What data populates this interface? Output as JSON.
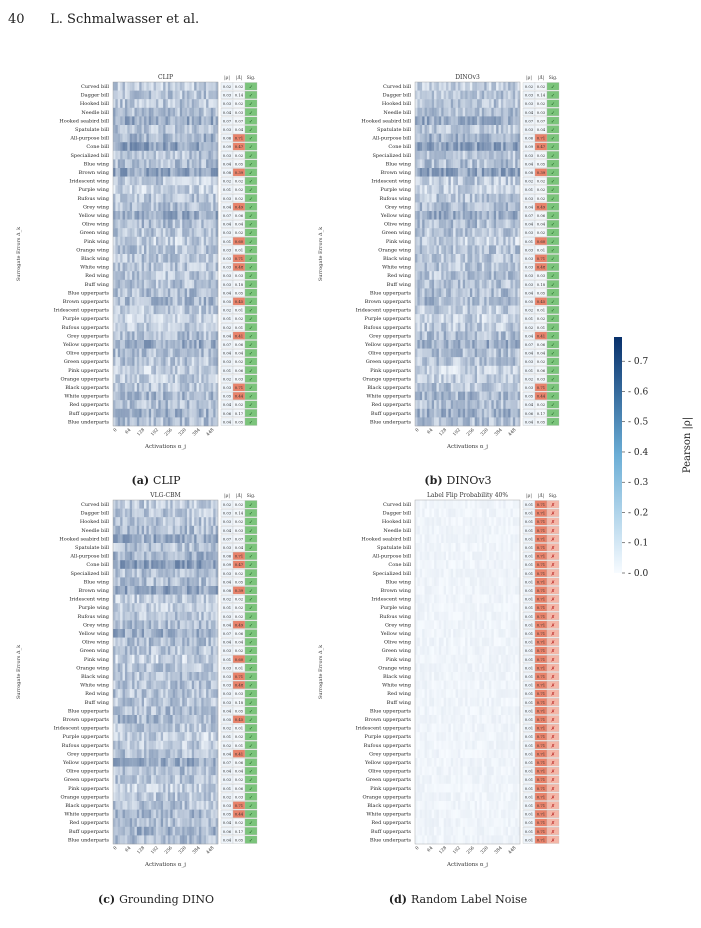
{
  "page": {
    "number": "40",
    "authors": "L. Schmalwasser et al."
  },
  "concepts": [
    "Curved bill",
    "Dagger bill",
    "Hooked bill",
    "Needle bill",
    "Hooked seabird bill",
    "Spatulate bill",
    "All-purpose bill",
    "Cone bill",
    "Specialized bill",
    "Blue wing",
    "Brown wing",
    "Iridescent wing",
    "Purple wing",
    "Rufous wing",
    "Grey wing",
    "Yellow wing",
    "Olive wing",
    "Green wing",
    "Pink wing",
    "Orange wing",
    "Black wing",
    "White wing",
    "Red wing",
    "Buff wing",
    "Blue upperparts",
    "Brown upperparts",
    "Iridescent upperparts",
    "Purple upperparts",
    "Rufous upperparts",
    "Grey upperparts",
    "Yellow upperparts",
    "Olive upperparts",
    "Green upperparts",
    "Pink upperparts",
    "Orange upperparts",
    "Black upperparts",
    "White upperparts",
    "Red upperparts",
    "Buff upperparts",
    "Blue underparts"
  ],
  "common": {
    "ylabel": "Surrogate Errors Δ_k",
    "xlabel": "Activations α_j",
    "xticks": [
      "0",
      "64",
      "128",
      "192",
      "256",
      "320",
      "384",
      "448"
    ],
    "col_headers": [
      "|ρ|",
      "|Δ̂|",
      "Sig."
    ],
    "check": "✓",
    "cross": "✗"
  },
  "panels": [
    {
      "id": "a",
      "label": "(a)",
      "caption": "CLIP",
      "title": "CLIP",
      "intensity": 1.0,
      "rho": [
        0.02,
        0.03,
        0.03,
        0.04,
        0.07,
        0.03,
        0.06,
        0.09,
        0.03,
        0.04,
        0.08,
        0.02,
        0.01,
        0.03,
        0.04,
        0.07,
        0.04,
        0.03,
        0.01,
        0.03,
        0.03,
        0.03,
        0.03,
        0.03,
        0.04,
        0.05,
        0.02,
        0.01,
        0.02,
        0.04,
        0.07,
        0.04,
        0.03,
        0.01,
        0.02,
        0.03,
        0.05,
        0.04,
        0.06,
        0.04
      ],
      "delta": [
        0.02,
        0.14,
        0.02,
        0.03,
        0.07,
        0.04,
        0.71,
        0.47,
        0.02,
        0.05,
        0.39,
        0.02,
        0.02,
        0.02,
        0.49,
        0.06,
        0.04,
        0.02,
        0.6,
        0.01,
        0.71,
        0.48,
        0.03,
        0.18,
        0.05,
        0.45,
        0.01,
        0.02,
        0.01,
        0.41,
        0.06,
        0.04,
        0.02,
        0.06,
        0.03,
        0.71,
        0.44,
        0.02,
        0.17,
        0.05
      ],
      "sig": [
        1,
        1,
        1,
        1,
        1,
        1,
        1,
        1,
        1,
        1,
        1,
        1,
        1,
        1,
        1,
        1,
        1,
        1,
        1,
        1,
        1,
        1,
        1,
        1,
        1,
        1,
        1,
        1,
        1,
        1,
        1,
        1,
        1,
        1,
        1,
        1,
        1,
        1,
        1,
        1
      ]
    },
    {
      "id": "b",
      "label": "(b)",
      "caption": "DINOv3",
      "title": "DINOv3",
      "intensity": 1.0,
      "rho": [
        0.02,
        0.03,
        0.03,
        0.04,
        0.07,
        0.03,
        0.06,
        0.09,
        0.03,
        0.04,
        0.08,
        0.02,
        0.01,
        0.03,
        0.04,
        0.07,
        0.04,
        0.03,
        0.01,
        0.03,
        0.03,
        0.03,
        0.03,
        0.03,
        0.04,
        0.05,
        0.02,
        0.01,
        0.02,
        0.04,
        0.07,
        0.04,
        0.03,
        0.01,
        0.02,
        0.03,
        0.05,
        0.04,
        0.06,
        0.04
      ],
      "delta": [
        0.02,
        0.14,
        0.02,
        0.03,
        0.07,
        0.04,
        0.71,
        0.47,
        0.02,
        0.05,
        0.39,
        0.02,
        0.02,
        0.02,
        0.49,
        0.06,
        0.04,
        0.02,
        0.6,
        0.01,
        0.71,
        0.48,
        0.03,
        0.18,
        0.05,
        0.45,
        0.01,
        0.02,
        0.01,
        0.41,
        0.06,
        0.04,
        0.02,
        0.06,
        0.03,
        0.71,
        0.44,
        0.02,
        0.17,
        0.05
      ],
      "sig": [
        1,
        1,
        1,
        1,
        1,
        1,
        1,
        1,
        1,
        1,
        1,
        1,
        1,
        1,
        1,
        1,
        1,
        1,
        1,
        1,
        1,
        1,
        1,
        1,
        1,
        1,
        1,
        1,
        1,
        1,
        1,
        1,
        1,
        1,
        1,
        1,
        1,
        1,
        1,
        1
      ]
    },
    {
      "id": "c",
      "label": "(c)",
      "caption": "Grounding DINO",
      "title": "VLG-CBM",
      "intensity": 1.0,
      "rho": [
        0.02,
        0.03,
        0.03,
        0.04,
        0.07,
        0.03,
        0.06,
        0.09,
        0.03,
        0.04,
        0.08,
        0.02,
        0.01,
        0.03,
        0.04,
        0.07,
        0.04,
        0.03,
        0.01,
        0.03,
        0.03,
        0.03,
        0.03,
        0.03,
        0.04,
        0.05,
        0.02,
        0.01,
        0.02,
        0.04,
        0.07,
        0.04,
        0.03,
        0.01,
        0.02,
        0.03,
        0.05,
        0.04,
        0.06,
        0.04
      ],
      "delta": [
        0.02,
        0.14,
        0.02,
        0.03,
        0.07,
        0.04,
        0.71,
        0.47,
        0.02,
        0.05,
        0.39,
        0.02,
        0.02,
        0.02,
        0.49,
        0.06,
        0.04,
        0.02,
        0.6,
        0.01,
        0.71,
        0.48,
        0.03,
        0.18,
        0.05,
        0.45,
        0.01,
        0.02,
        0.01,
        0.41,
        0.06,
        0.04,
        0.02,
        0.06,
        0.03,
        0.71,
        0.44,
        0.02,
        0.17,
        0.05
      ],
      "sig": [
        1,
        1,
        1,
        1,
        1,
        1,
        1,
        1,
        1,
        1,
        1,
        1,
        1,
        1,
        1,
        1,
        1,
        1,
        1,
        1,
        1,
        1,
        1,
        1,
        1,
        1,
        1,
        1,
        1,
        1,
        1,
        1,
        1,
        1,
        1,
        1,
        1,
        1,
        1,
        1
      ]
    },
    {
      "id": "d",
      "label": "(d)",
      "caption": "Random Label Noise",
      "title": "Label Flip Probability 40%",
      "intensity": 0.18,
      "rho": [
        0.01,
        0.01,
        0.01,
        0.01,
        0.01,
        0.01,
        0.01,
        0.01,
        0.01,
        0.01,
        0.01,
        0.01,
        0.01,
        0.01,
        0.01,
        0.01,
        0.01,
        0.01,
        0.01,
        0.01,
        0.01,
        0.01,
        0.01,
        0.01,
        0.01,
        0.01,
        0.01,
        0.01,
        0.01,
        0.01,
        0.01,
        0.01,
        0.01,
        0.01,
        0.01,
        0.01,
        0.01,
        0.01,
        0.01,
        0.01
      ],
      "delta": [
        0.71,
        0.71,
        0.71,
        0.71,
        0.71,
        0.71,
        0.71,
        0.71,
        0.71,
        0.71,
        0.71,
        0.71,
        0.71,
        0.71,
        0.71,
        0.71,
        0.71,
        0.71,
        0.71,
        0.71,
        0.71,
        0.71,
        0.71,
        0.71,
        0.71,
        0.71,
        0.71,
        0.71,
        0.71,
        0.71,
        0.71,
        0.71,
        0.71,
        0.71,
        0.71,
        0.71,
        0.71,
        0.71,
        0.71,
        0.71
      ],
      "sig": [
        0,
        0,
        0,
        0,
        0,
        0,
        0,
        0,
        0,
        0,
        0,
        0,
        0,
        0,
        0,
        0,
        0,
        0,
        0,
        0,
        0,
        0,
        0,
        0,
        0,
        0,
        0,
        0,
        0,
        0,
        0,
        0,
        0,
        0,
        0,
        0,
        0,
        0,
        0,
        0
      ]
    }
  ],
  "colorbar": {
    "label": "Pearson |ρ|",
    "ticks": [
      "0.0",
      "0.1",
      "0.2",
      "0.3",
      "0.4",
      "0.5",
      "0.6",
      "0.7"
    ],
    "min": 0.0,
    "max": 0.78
  },
  "colors": {
    "heat_light": "#f7fbff",
    "heat_dark": "#08306b",
    "bad": "#e8826a",
    "good": "#7bc47b"
  }
}
